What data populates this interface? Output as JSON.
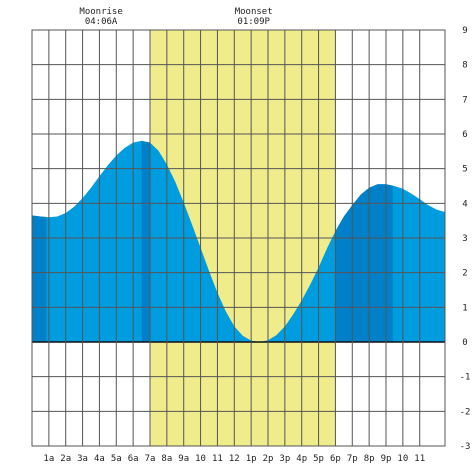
{
  "chart_data": {
    "type": "area",
    "title": "",
    "xlabel": "",
    "ylabel": "",
    "x_range": [
      0,
      24.5
    ],
    "ylim": [
      -3,
      9
    ],
    "y_ticks": [
      -3,
      -2,
      -1,
      0,
      1,
      2,
      3,
      4,
      5,
      6,
      7,
      8,
      9
    ],
    "y_tick_labels": [
      "-3",
      "-2",
      "-1",
      "0",
      "1",
      "2",
      "3",
      "4",
      "5",
      "6",
      "7",
      "8",
      "9"
    ],
    "x_tick_hours": [
      1,
      2,
      3,
      4,
      5,
      6,
      7,
      8,
      9,
      10,
      11,
      12,
      13,
      14,
      15,
      16,
      17,
      18,
      19,
      20,
      21,
      22,
      23
    ],
    "x_tick_labels": [
      "1a",
      "2a",
      "3a",
      "4a",
      "5a",
      "6a",
      "7a",
      "8a",
      "9a",
      "10",
      "11",
      "12",
      "1p",
      "2p",
      "3p",
      "4p",
      "5p",
      "6p",
      "7p",
      "8p",
      "9p",
      "10",
      "11"
    ],
    "grid": true,
    "moon_up_window_hours": [
      7.0,
      18.0
    ],
    "night_bands_hours": [
      [
        0,
        0.85
      ],
      [
        6.5,
        7.0
      ],
      [
        18.0,
        21.4
      ]
    ],
    "annotations": [
      {
        "label": "Moonrise",
        "value": "04:06A",
        "hour": 4.1
      },
      {
        "label": "Moonset",
        "value": "01:09P",
        "hour": 13.15
      }
    ],
    "series": [
      {
        "x": [
          0,
          0.5,
          1,
          1.5,
          2,
          2.5,
          3,
          3.5,
          4,
          4.5,
          5,
          5.5,
          6,
          6.5,
          7,
          7.5,
          8,
          8.5,
          9,
          9.5,
          10,
          10.5,
          11,
          11.5,
          12,
          12.5,
          13,
          13.5,
          14,
          14.5,
          15,
          15.5,
          16,
          16.5,
          17,
          17.5,
          18,
          18.5,
          19,
          19.5,
          20,
          20.5,
          21,
          21.5,
          22,
          22.5,
          23,
          23.5,
          24,
          24.5
        ],
        "values": [
          3.65,
          3.62,
          3.6,
          3.62,
          3.72,
          3.9,
          4.15,
          4.45,
          4.78,
          5.1,
          5.38,
          5.6,
          5.75,
          5.8,
          5.75,
          5.52,
          5.12,
          4.62,
          4.02,
          3.38,
          2.72,
          2.05,
          1.42,
          0.88,
          0.45,
          0.18,
          0.04,
          0.0,
          0.05,
          0.2,
          0.45,
          0.8,
          1.2,
          1.65,
          2.15,
          2.7,
          3.2,
          3.62,
          3.95,
          4.25,
          4.45,
          4.55,
          4.55,
          4.5,
          4.42,
          4.28,
          4.12,
          3.95,
          3.82,
          3.75
        ]
      }
    ],
    "colors": {
      "moon_band": "#f0ec8c",
      "water_day": "#009ce0",
      "water_night": "#0080c8",
      "grid": "#555555",
      "background": "#ffffff"
    }
  }
}
